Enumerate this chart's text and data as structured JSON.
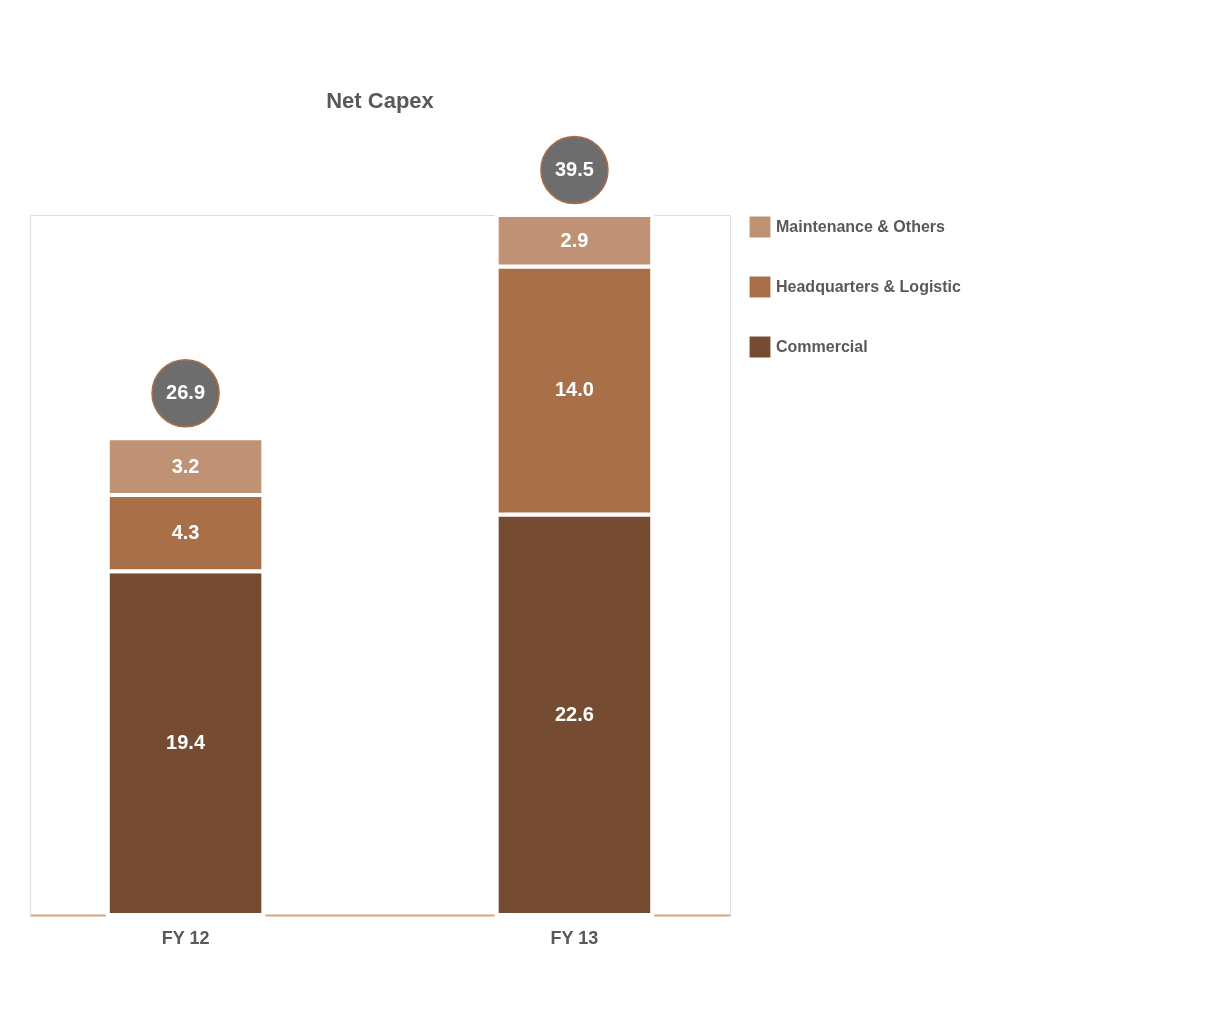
{
  "chart_data": {
    "type": "bar",
    "stacked": true,
    "title": "Net Capex",
    "categories": [
      "FY 12",
      "FY 13"
    ],
    "series": [
      {
        "name": "Commercial",
        "color": "#754c31",
        "values": [
          19.4,
          22.6
        ],
        "value_labels": [
          "19.4",
          "22.6"
        ]
      },
      {
        "name": "Headquarters & Logistic",
        "color": "#a86f48",
        "values": [
          4.3,
          14.0
        ],
        "value_labels": [
          "4.3",
          "14.0"
        ]
      },
      {
        "name": "Maintenance & Others",
        "color": "#bf9276",
        "values": [
          3.2,
          2.9
        ],
        "value_labels": [
          "3.2",
          "2.9"
        ]
      }
    ],
    "totals": [
      "26.9",
      "39.5"
    ],
    "legend": "right",
    "grid": false
  }
}
